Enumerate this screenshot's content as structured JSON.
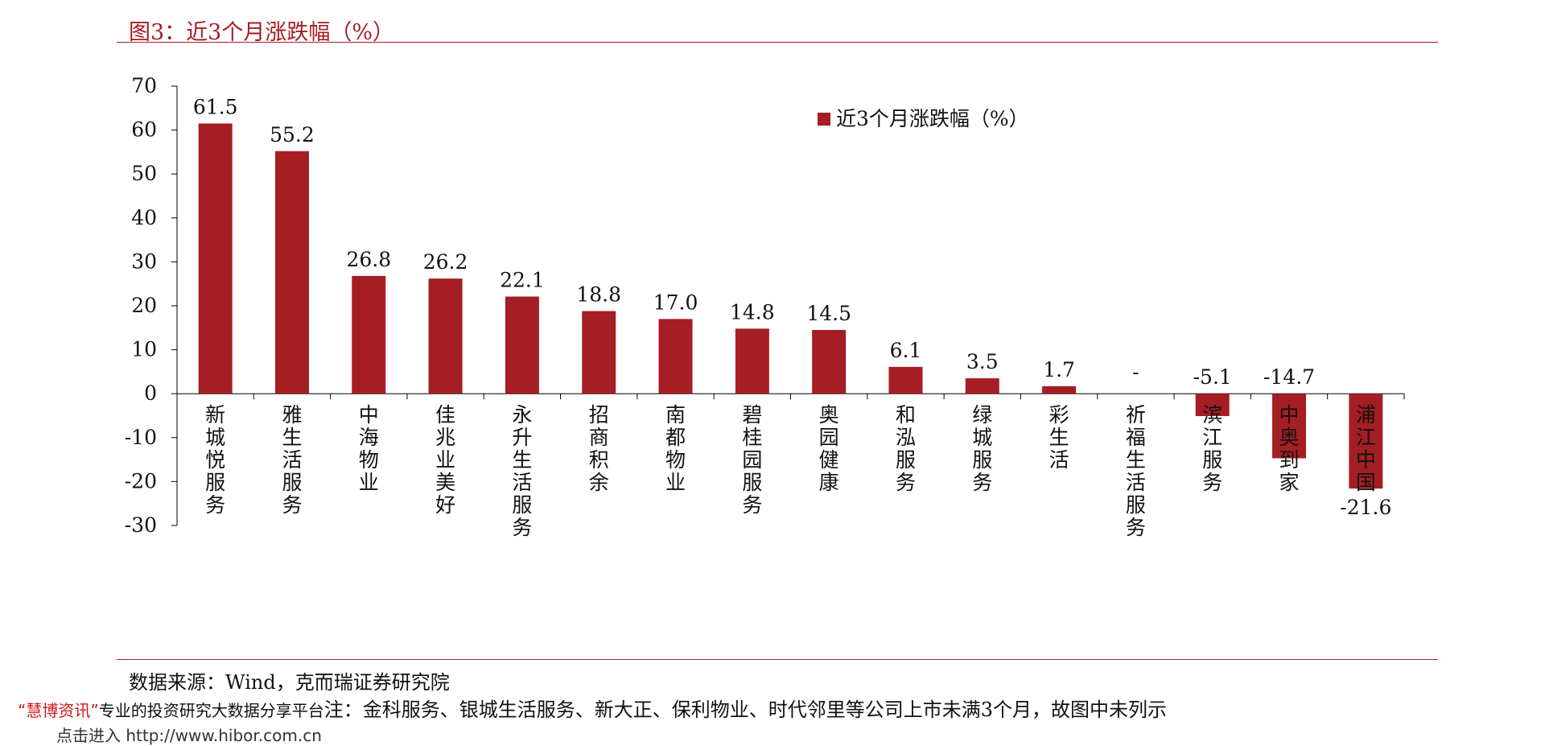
{
  "title": "图3：近3个月涨跌幅（%）",
  "source": "数据来源：Wind，克而瑞证券研究院",
  "footer": {
    "brand": "“慧博资讯”",
    "overlay": "专业的投资研究大数据分享平台",
    "note": "注：金科服务、银城生活服务、新大正、保利物业、时代邻里等公司上市未满3个月，故图中未列示",
    "partial": "点击进入 http://www.hibor.com.cn"
  },
  "colors": {
    "accent": "#a51e24",
    "bar": "#a51e24"
  },
  "chart_data": {
    "type": "bar",
    "title": "",
    "xlabel": "",
    "ylabel": "",
    "ylim": [
      -30,
      70
    ],
    "yticks": [
      70,
      60,
      50,
      40,
      30,
      20,
      10,
      0,
      -10,
      -20,
      -30
    ],
    "grid": false,
    "legend": {
      "position": "top-right",
      "entries": [
        "近3个月涨跌幅（%）"
      ]
    },
    "categories": [
      "新城悦服务",
      "雅生活服务",
      "中海物业",
      "佳兆业美好",
      "永升生活服务",
      "招商积余",
      "南都物业",
      "碧桂园服务",
      "奥园健康",
      "和泓服务",
      "绿城服务",
      "彩生活",
      "祈福生活服务",
      "滨江服务",
      "中奥到家",
      "浦江中国"
    ],
    "series": [
      {
        "name": "近3个月涨跌幅（%）",
        "values": [
          61.5,
          55.2,
          26.8,
          26.2,
          22.1,
          18.8,
          17.0,
          14.8,
          14.5,
          6.1,
          3.5,
          1.7,
          null,
          -5.1,
          -14.7,
          -21.6
        ],
        "labels": [
          "61.5",
          "55.2",
          "26.8",
          "26.2",
          "22.1",
          "18.8",
          "17.0",
          "14.8",
          "14.5",
          "6.1",
          "3.5",
          "1.7",
          "-",
          "-5.1",
          "-14.7",
          "-21.6"
        ]
      }
    ]
  }
}
